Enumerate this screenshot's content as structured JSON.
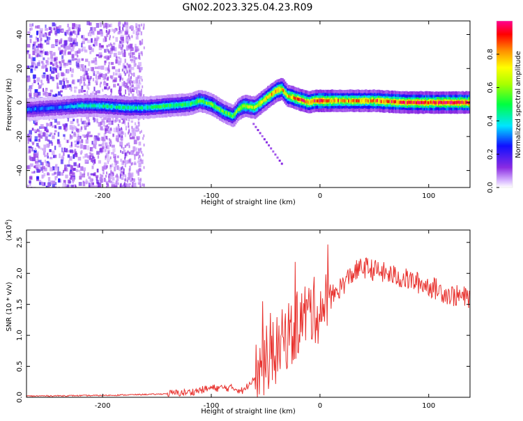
{
  "title": "GN02.2023.325.04.23.R09",
  "colors": {
    "snr_line": "#e8312d",
    "axis": "#000000",
    "background": "#ffffff"
  },
  "chart_data": [
    {
      "type": "heatmap",
      "xlabel": "Height of straight line (km)",
      "ylabel": "Frequency (Hz)",
      "xlim": [
        -270,
        138
      ],
      "ylim": [
        -50,
        48
      ],
      "xticks": [
        -200,
        -100,
        0,
        100
      ],
      "yticks": [
        -40,
        -20,
        0,
        20,
        40
      ],
      "colorbar": {
        "label": "Normalized spectral amplitude",
        "range": [
          0,
          1
        ],
        "ticks": [
          0.0,
          0.2,
          0.4,
          0.6,
          0.8
        ],
        "colormap": "rainbow (purple to red)"
      },
      "ridge": {
        "x": [
          -265,
          -240,
          -220,
          -200,
          -180,
          -160,
          -140,
          -120,
          -110,
          -100,
          -90,
          -80,
          -75,
          -70,
          -60,
          -50,
          -40,
          -35,
          -30,
          -25,
          -20,
          -15,
          -10,
          -5,
          0,
          20,
          50,
          80,
          110,
          138
        ],
        "y": [
          -4,
          -3,
          -2,
          -2,
          -3,
          -3,
          -2,
          -1,
          1,
          -1,
          -5,
          -8,
          -4,
          -2,
          -3,
          2,
          7,
          8,
          4,
          3,
          2,
          1,
          0,
          1,
          1,
          1,
          1,
          0,
          0,
          0
        ],
        "amplitude": [
          0.3,
          0.3,
          0.4,
          0.45,
          0.45,
          0.45,
          0.5,
          0.5,
          0.55,
          0.55,
          0.55,
          0.55,
          0.6,
          0.65,
          0.65,
          0.75,
          0.8,
          0.8,
          0.75,
          0.8,
          0.85,
          0.9,
          0.85,
          0.9,
          0.95,
          0.8,
          0.85,
          0.9,
          0.95,
          0.95
        ]
      }
    },
    {
      "type": "line",
      "xlabel": "Height of straight line (km)",
      "ylabel": "SNR (10 * v/v)",
      "yscale_label": "(x10",
      "yscale_exp": "4",
      "yscale_close": ")",
      "xlim": [
        -270,
        138
      ],
      "ylim": [
        0,
        2.7
      ],
      "xticks": [
        -200,
        -100,
        0,
        100
      ],
      "yticks": [
        0.0,
        0.5,
        1.0,
        1.5,
        2.0,
        2.5
      ],
      "series": [
        {
          "x": [
            -270,
            -200,
            -150,
            -120,
            -100,
            -80,
            -70,
            -60,
            -50,
            -40,
            -30,
            -25,
            -20,
            -15,
            -10,
            0,
            10,
            20,
            30,
            40,
            60,
            80,
            100,
            120,
            138
          ],
          "y": [
            0.02,
            0.03,
            0.05,
            0.08,
            0.15,
            0.15,
            0.1,
            0.35,
            0.6,
            0.75,
            1.0,
            1.0,
            1.2,
            1.3,
            1.4,
            1.4,
            1.6,
            1.8,
            2.0,
            2.1,
            2.0,
            1.9,
            1.8,
            1.65,
            1.6
          ]
        }
      ]
    }
  ]
}
